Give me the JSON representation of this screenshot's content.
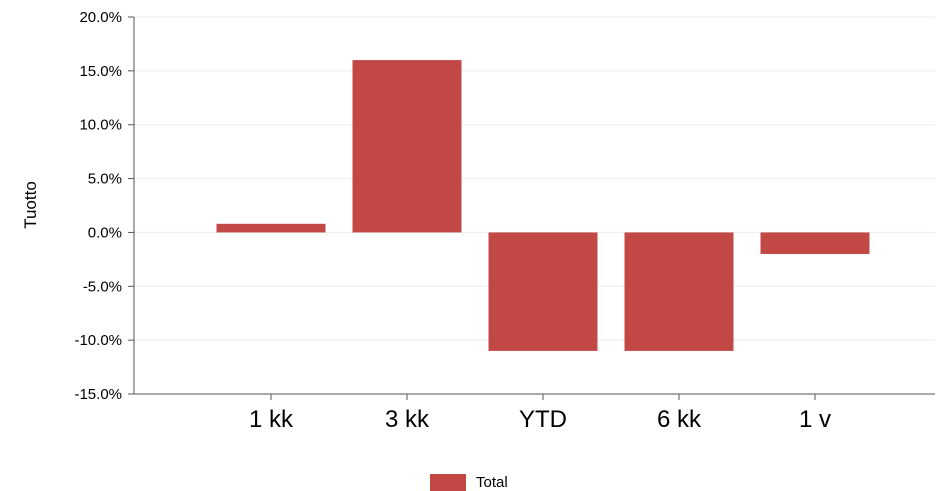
{
  "chart_data": {
    "type": "bar",
    "categories": [
      "1 kk",
      "3 kk",
      "YTD",
      "6 kk",
      "1 v"
    ],
    "series": [
      {
        "name": "Total",
        "values": [
          0.8,
          16.0,
          -11.0,
          -11.0,
          -2.0
        ],
        "color": "#c14844"
      }
    ],
    "ylabel": "Tuotto",
    "xlabel": "",
    "title": "",
    "ylim": [
      -15,
      20
    ],
    "yticks": [
      "20.0%",
      "15.0%",
      "10.0%",
      "5.0%",
      "0.0%",
      "-5.0%",
      "-10.0%",
      "-15.0%"
    ],
    "ytick_values": [
      20,
      15,
      10,
      5,
      0,
      -5,
      -10,
      -15
    ],
    "grid": true,
    "legend_position": "bottom"
  },
  "colors": {
    "bar": "#c14844",
    "grid": "#eeeeee",
    "axis": "#555555"
  }
}
